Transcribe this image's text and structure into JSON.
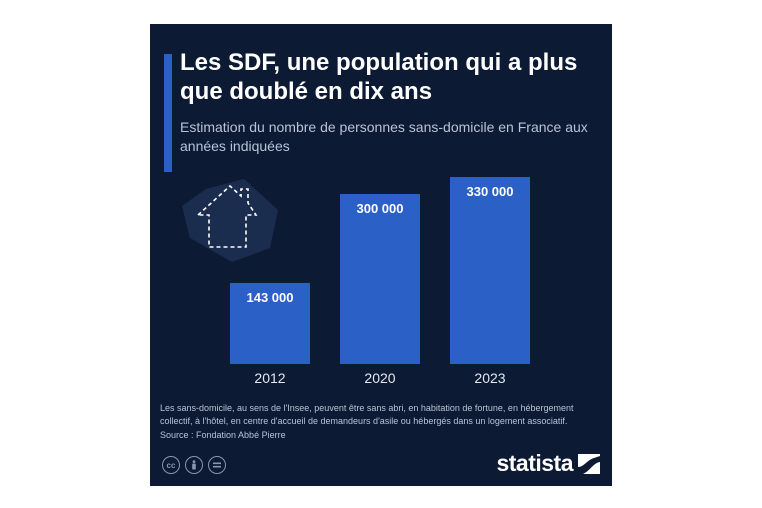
{
  "header": {
    "title": "Les SDF, une population qui a plus que doublé en dix ans",
    "subtitle": "Estimation du nombre de personnes sans-domicile en France aux années indiquées"
  },
  "chart_data": {
    "type": "bar",
    "categories": [
      "2012",
      "2020",
      "2023"
    ],
    "values": [
      143000,
      300000,
      330000
    ],
    "value_labels": [
      "143 000",
      "300 000",
      "330 000"
    ],
    "title": "Les SDF, une population qui a plus que doublé en dix ans",
    "subtitle": "Estimation du nombre de personnes sans-domicile en France aux années indiquées",
    "xlabel": "",
    "ylabel": "",
    "ylim": [
      0,
      330000
    ],
    "grid": false,
    "legend": "none",
    "bar_color": "#2b60c6"
  },
  "footer": {
    "note": "Les sans-domicile, au sens de l'Insee, peuvent être sans abri, en habitation de fortune, en hébergement collectif, à l'hôtel, en centre d'accueil de demandeurs d'asile ou hébergés dans un logement associatif.",
    "source": "Source : Fondation Abbé Pierre",
    "license_icons": [
      "cc-icon",
      "attribution-icon",
      "no-derivatives-icon"
    ],
    "brand": "statista"
  },
  "colors": {
    "background": "#0d1a33",
    "accent": "#2b60c6",
    "text": "#ffffff",
    "muted_text": "#b9c3d6"
  }
}
